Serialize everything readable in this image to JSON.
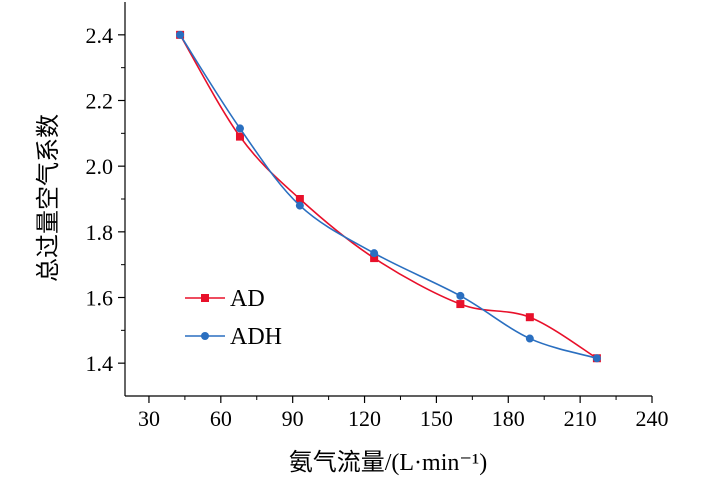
{
  "chart_data": {
    "type": "line",
    "title": "",
    "xlabel": "氨气流量/(L·min⁻¹)",
    "ylabel": "总过量空气系数",
    "xlim": [
      20,
      240
    ],
    "ylim": [
      1.3,
      2.5
    ],
    "xticks": [
      "30",
      "60",
      "90",
      "120",
      "150",
      "180",
      "210",
      "240"
    ],
    "yticks": [
      "1.4",
      "1.6",
      "1.8",
      "2.0",
      "2.2",
      "2.4"
    ],
    "grid": false,
    "legend_position": "lower-left",
    "series": [
      {
        "name": "AD",
        "color": "#e8102a",
        "marker": "square",
        "x": [
          43,
          68,
          93,
          124,
          160,
          189,
          217
        ],
        "y": [
          2.4,
          2.09,
          1.9,
          1.72,
          1.58,
          1.54,
          1.415
        ]
      },
      {
        "name": "ADH",
        "color": "#2a6fc0",
        "marker": "circle",
        "x": [
          43,
          68,
          93,
          124,
          160,
          189,
          217
        ],
        "y": [
          2.4,
          2.115,
          1.88,
          1.735,
          1.605,
          1.475,
          1.415
        ]
      }
    ]
  }
}
